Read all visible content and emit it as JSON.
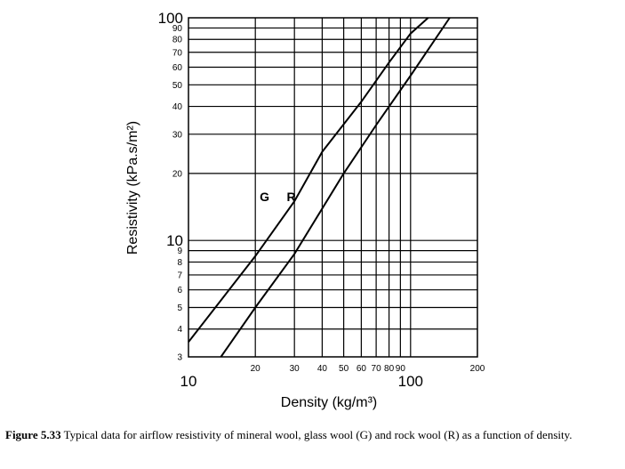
{
  "chart_data": {
    "type": "line",
    "title": "",
    "xlabel": "Density  (kg/m³)",
    "ylabel": "Resistivity (kPa.s/m²)",
    "x_scale": "log",
    "y_scale": "log",
    "xlim": [
      10,
      200
    ],
    "ylim": [
      3,
      100
    ],
    "grid": true,
    "x_major_ticks": [
      {
        "value": 10,
        "label": "10"
      },
      {
        "value": 100,
        "label": "100"
      }
    ],
    "x_minor_ticks": [
      {
        "value": 20,
        "label": "20"
      },
      {
        "value": 30,
        "label": "30"
      },
      {
        "value": 40,
        "label": "40"
      },
      {
        "value": 50,
        "label": "50"
      },
      {
        "value": 60,
        "label": "60"
      },
      {
        "value": 70,
        "label": "70"
      },
      {
        "value": 80,
        "label": "80"
      },
      {
        "value": 90,
        "label": "90"
      },
      {
        "value": 200,
        "label": "200"
      }
    ],
    "y_major_ticks": [
      {
        "value": 10,
        "label": "10"
      },
      {
        "value": 100,
        "label": "100"
      }
    ],
    "y_minor_ticks": [
      {
        "value": 3,
        "label": "3"
      },
      {
        "value": 4,
        "label": "4"
      },
      {
        "value": 5,
        "label": "5"
      },
      {
        "value": 6,
        "label": "6"
      },
      {
        "value": 7,
        "label": "7"
      },
      {
        "value": 8,
        "label": "8"
      },
      {
        "value": 9,
        "label": "9"
      },
      {
        "value": 20,
        "label": "20"
      },
      {
        "value": 30,
        "label": "30"
      },
      {
        "value": 40,
        "label": "40"
      },
      {
        "value": 50,
        "label": "50"
      },
      {
        "value": 60,
        "label": "60"
      },
      {
        "value": 70,
        "label": "70"
      },
      {
        "value": 80,
        "label": "80"
      },
      {
        "value": 90,
        "label": "90"
      }
    ],
    "series": [
      {
        "name": "G",
        "x": [
          10,
          20,
          30,
          40,
          60,
          80,
          100,
          120
        ],
        "y": [
          3.5,
          8.5,
          15,
          25,
          42,
          63,
          85,
          100
        ]
      },
      {
        "name": "R",
        "x": [
          14,
          20,
          30,
          50,
          70,
          100,
          150
        ],
        "y": [
          3,
          5,
          8.7,
          20,
          33,
          55,
          100
        ]
      }
    ],
    "series_labels": [
      {
        "name": "G",
        "x": 22,
        "y": 15
      },
      {
        "name": "R",
        "x": 29,
        "y": 15
      }
    ]
  },
  "caption": {
    "figure_label": "Figure 5.33",
    "text": " Typical data for airflow resistivity of mineral wool, glass wool (G) and rock wool (R) as a function of density."
  }
}
